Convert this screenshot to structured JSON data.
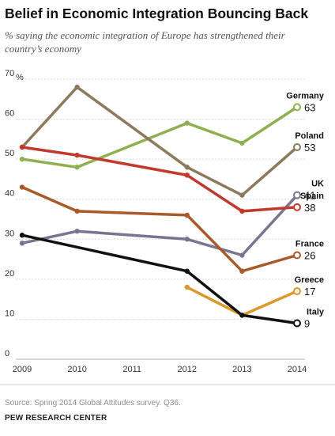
{
  "chart_data": {
    "type": "line",
    "title": "Belief in Economic Integration Bouncing Back",
    "subtitle_lines": [
      "% saying the economic integration of Europe has strengthened their",
      "country’s economy"
    ],
    "y_unit": "%",
    "ylim": [
      0,
      70
    ],
    "yticks": [
      0,
      10,
      20,
      30,
      40,
      50,
      60,
      70
    ],
    "x": [
      2009,
      2010,
      2011,
      2012,
      2013,
      2014
    ],
    "grid": true,
    "series": [
      {
        "name": "Germany",
        "color": "#8fb04f",
        "end_label": "63",
        "points": [
          [
            2009,
            50
          ],
          [
            2010,
            48
          ],
          [
            2012,
            59
          ],
          [
            2013,
            54
          ],
          [
            2014,
            63
          ]
        ]
      },
      {
        "name": "Poland",
        "color": "#8b7b5c",
        "end_label": "53",
        "points": [
          [
            2009,
            53
          ],
          [
            2010,
            68
          ],
          [
            2012,
            48
          ],
          [
            2013,
            41
          ],
          [
            2014,
            53
          ]
        ]
      },
      {
        "name": "UK",
        "color": "#7d7390",
        "end_label": "41",
        "points": [
          [
            2009,
            29
          ],
          [
            2010,
            32
          ],
          [
            2012,
            30
          ],
          [
            2013,
            26
          ],
          [
            2014,
            41
          ]
        ]
      },
      {
        "name": "Spain",
        "color": "#c2392e",
        "end_label": "38",
        "points": [
          [
            2009,
            53
          ],
          [
            2010,
            51
          ],
          [
            2012,
            46
          ],
          [
            2013,
            37
          ],
          [
            2014,
            38
          ]
        ]
      },
      {
        "name": "France",
        "color": "#a85a2a",
        "end_label": "26",
        "points": [
          [
            2009,
            43
          ],
          [
            2010,
            37
          ],
          [
            2012,
            36
          ],
          [
            2013,
            22
          ],
          [
            2014,
            26
          ]
        ]
      },
      {
        "name": "Greece",
        "color": "#d9992c",
        "end_label": "17",
        "points": [
          [
            2012,
            18
          ],
          [
            2013,
            11
          ],
          [
            2014,
            17
          ]
        ]
      },
      {
        "name": "Italy",
        "color": "#111111",
        "end_label": "9",
        "points": [
          [
            2009,
            31
          ],
          [
            2012,
            22
          ],
          [
            2013,
            11
          ],
          [
            2014,
            9
          ]
        ]
      }
    ]
  },
  "footer": {
    "source": "Source: Spring 2014 Global Attitudes survey. Q36.",
    "org": "PEW RESEARCH CENTER"
  }
}
